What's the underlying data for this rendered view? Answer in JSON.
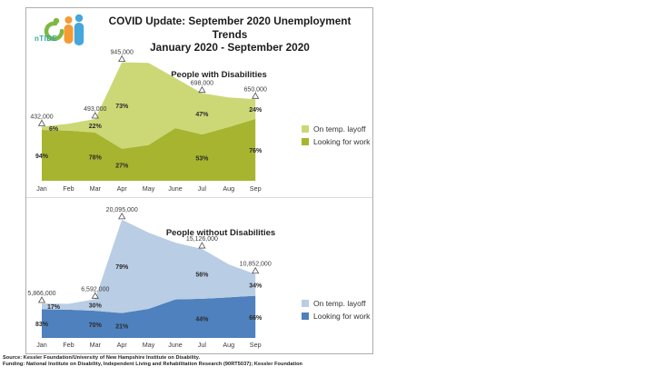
{
  "header": {
    "logo_text": "nTIDE",
    "title_line1": "COVID Update: September 2020 Unemployment Trends",
    "title_line2": "January 2020 - September 2020"
  },
  "colors": {
    "light_green": "#ccd876",
    "olive_green": "#a7b42f",
    "light_blue": "#b9cde5",
    "blue": "#4e81bd",
    "logo_teal": "#2fa8a3",
    "logo_green": "#7db843",
    "logo_orange": "#f59b33",
    "logo_blue": "#45a7dc"
  },
  "footer": {
    "source_line": "Source: Kessler Foundation/University of New Hampshire Institute on Disability.",
    "funding_line": "Funding: National Institute on Disability, Independent Living and Rehabilitation Research (90RT5037); Kessler Foundation"
  },
  "chart_data": [
    {
      "type": "area",
      "stacked": true,
      "title": "People with Disabilities",
      "categories": [
        "Jan",
        "Feb",
        "Mar",
        "Apr",
        "May",
        "June",
        "Jul",
        "Aug",
        "Sep"
      ],
      "ylim": [
        0,
        1000000
      ],
      "grid": false,
      "legend_position": "right",
      "series": [
        {
          "name": "On temp. layoff",
          "color": "#ccd876",
          "values": [
            26000,
            55000,
            108000,
            690000,
            655000,
            400000,
            328000,
            237000,
            156000
          ]
        },
        {
          "name": "Looking for work",
          "color": "#a7b42f",
          "values": [
            406000,
            400000,
            385000,
            255000,
            285000,
            420000,
            370000,
            428000,
            494000
          ]
        }
      ],
      "totals": [
        432000,
        455000,
        493000,
        945000,
        940000,
        820000,
        698000,
        665000,
        650000
      ],
      "annotations": [
        {
          "index": 0,
          "month": "Jan",
          "total": 432000,
          "total_label": "432,000",
          "on_temp_layoff_pct": "6%",
          "looking_for_work_pct": "94%"
        },
        {
          "index": 2,
          "month": "Mar",
          "total": 493000,
          "total_label": "493,000",
          "on_temp_layoff_pct": "22%",
          "looking_for_work_pct": "78%"
        },
        {
          "index": 3,
          "month": "Apr",
          "total": 945000,
          "total_label": "945,000",
          "on_temp_layoff_pct": "73%",
          "looking_for_work_pct": "27%"
        },
        {
          "index": 6,
          "month": "Jul",
          "total": 698000,
          "total_label": "698,000",
          "on_temp_layoff_pct": "47%",
          "looking_for_work_pct": "53%"
        },
        {
          "index": 8,
          "month": "Sep",
          "total": 650000,
          "total_label": "650,000",
          "on_temp_layoff_pct": "24%",
          "looking_for_work_pct": "76%"
        }
      ]
    },
    {
      "type": "area",
      "stacked": true,
      "title": "People without Disabilities",
      "categories": [
        "Jan",
        "Feb",
        "Mar",
        "Apr",
        "May",
        "June",
        "Jul",
        "Aug",
        "Sep"
      ],
      "ylim": [
        0,
        21000000
      ],
      "grid": false,
      "legend_position": "right",
      "series": [
        {
          "name": "On temp. layoff",
          "color": "#b9cde5",
          "values": [
            997000,
            1000000,
            1978000,
            15875000,
            12950000,
            9650000,
            8471000,
            5600000,
            3690000
          ]
        },
        {
          "name": "Looking for work",
          "color": "#4e81bd",
          "values": [
            4869000,
            4800000,
            4614000,
            4220000,
            4950000,
            6550000,
            6655000,
            6900000,
            7162000
          ]
        }
      ],
      "totals": [
        5866000,
        5800000,
        6592000,
        20095000,
        17900000,
        16200000,
        15126000,
        12500000,
        10852000
      ],
      "annotations": [
        {
          "index": 0,
          "month": "Jan",
          "total": 5866000,
          "total_label": "5,866,000",
          "on_temp_layoff_pct": "17%",
          "looking_for_work_pct": "83%"
        },
        {
          "index": 2,
          "month": "Mar",
          "total": 6592000,
          "total_label": "6,592,000",
          "on_temp_layoff_pct": "30%",
          "looking_for_work_pct": "70%"
        },
        {
          "index": 3,
          "month": "Apr",
          "total": 20095000,
          "total_label": "20,095,000",
          "on_temp_layoff_pct": "79%",
          "looking_for_work_pct": "21%"
        },
        {
          "index": 6,
          "month": "Jul",
          "total": 15126000,
          "total_label": "15,126,000",
          "on_temp_layoff_pct": "56%",
          "looking_for_work_pct": "44%"
        },
        {
          "index": 8,
          "month": "Sep",
          "total": 10852000,
          "total_label": "10,852,000",
          "on_temp_layoff_pct": "34%",
          "looking_for_work_pct": "66%"
        }
      ]
    }
  ]
}
